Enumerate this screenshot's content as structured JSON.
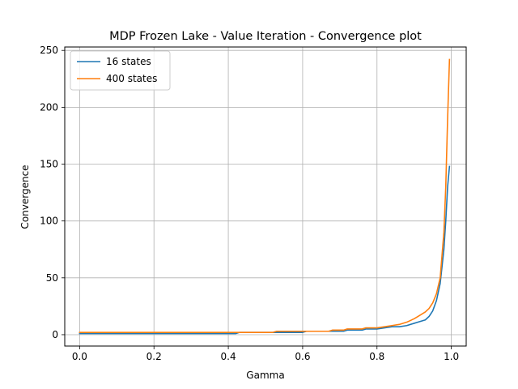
{
  "chart_data": {
    "type": "line",
    "title": "MDP Frozen Lake - Value Iteration - Convergence plot",
    "xlabel": "Gamma",
    "ylabel": "Convergence",
    "xlim": [
      -0.04,
      1.04
    ],
    "ylim": [
      -10,
      253
    ],
    "xticks": [
      0.0,
      0.2,
      0.4,
      0.6,
      0.8,
      1.0
    ],
    "xtick_labels": [
      "0.0",
      "0.2",
      "0.4",
      "0.6",
      "0.8",
      "1.0"
    ],
    "yticks": [
      0,
      50,
      100,
      150,
      200,
      250
    ],
    "ytick_labels": [
      "0",
      "50",
      "100",
      "150",
      "200",
      "250"
    ],
    "grid": true,
    "legend_position": "top-left",
    "series": [
      {
        "name": "16 states",
        "color": "#1f77b4",
        "x": [
          0.0,
          0.42,
          0.43,
          0.52,
          0.53,
          0.6,
          0.61,
          0.67,
          0.68,
          0.71,
          0.72,
          0.76,
          0.77,
          0.8,
          0.82,
          0.84,
          0.86,
          0.88,
          0.9,
          0.91,
          0.93,
          0.94,
          0.95,
          0.96,
          0.97,
          0.98,
          0.985,
          0.99,
          0.995
        ],
        "y": [
          1,
          1,
          2,
          2,
          2,
          2,
          3,
          3,
          3,
          3,
          4,
          4,
          5,
          5,
          6,
          7,
          7,
          8,
          10,
          11,
          13,
          16,
          21,
          30,
          45,
          75,
          100,
          130,
          148
        ]
      },
      {
        "name": "400 states",
        "color": "#ff7f0e",
        "x": [
          0.0,
          0.42,
          0.43,
          0.52,
          0.53,
          0.6,
          0.61,
          0.67,
          0.68,
          0.71,
          0.72,
          0.76,
          0.77,
          0.8,
          0.82,
          0.84,
          0.86,
          0.88,
          0.9,
          0.91,
          0.93,
          0.94,
          0.95,
          0.96,
          0.97,
          0.98,
          0.985,
          0.99,
          0.995
        ],
        "y": [
          2,
          2,
          2,
          2,
          3,
          3,
          3,
          3,
          4,
          4,
          5,
          5,
          6,
          6,
          7,
          8,
          9,
          11,
          14,
          16,
          20,
          23,
          28,
          36,
          50,
          90,
          130,
          190,
          242
        ]
      }
    ]
  }
}
